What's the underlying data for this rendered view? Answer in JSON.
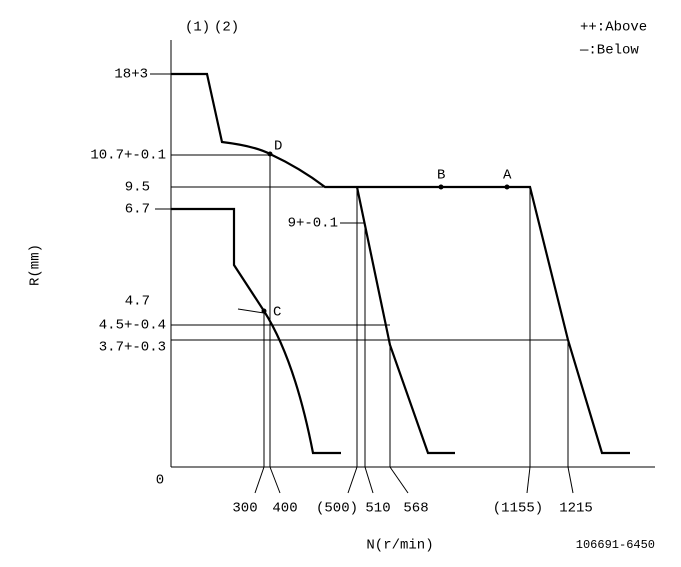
{
  "header": {
    "markers": [
      "(1)",
      "(2)"
    ],
    "legend": [
      "++:Above",
      "—:Below"
    ]
  },
  "r_labels": [
    "18+3",
    "10.7+-0.1",
    "9.5",
    "6.7",
    "9+-0.1",
    "4.7",
    "4.5+-0.4",
    "3.7+-0.3"
  ],
  "point_labels": [
    "D",
    "B",
    "A",
    "C"
  ],
  "n_labels": [
    "300",
    "400",
    "(500)",
    "510",
    "568",
    "(1155)",
    "1215"
  ],
  "axes": {
    "origin": "0",
    "x_title": "N(r/min)",
    "y_title": "R(mm)"
  },
  "drawing_number": "106691-6450"
}
